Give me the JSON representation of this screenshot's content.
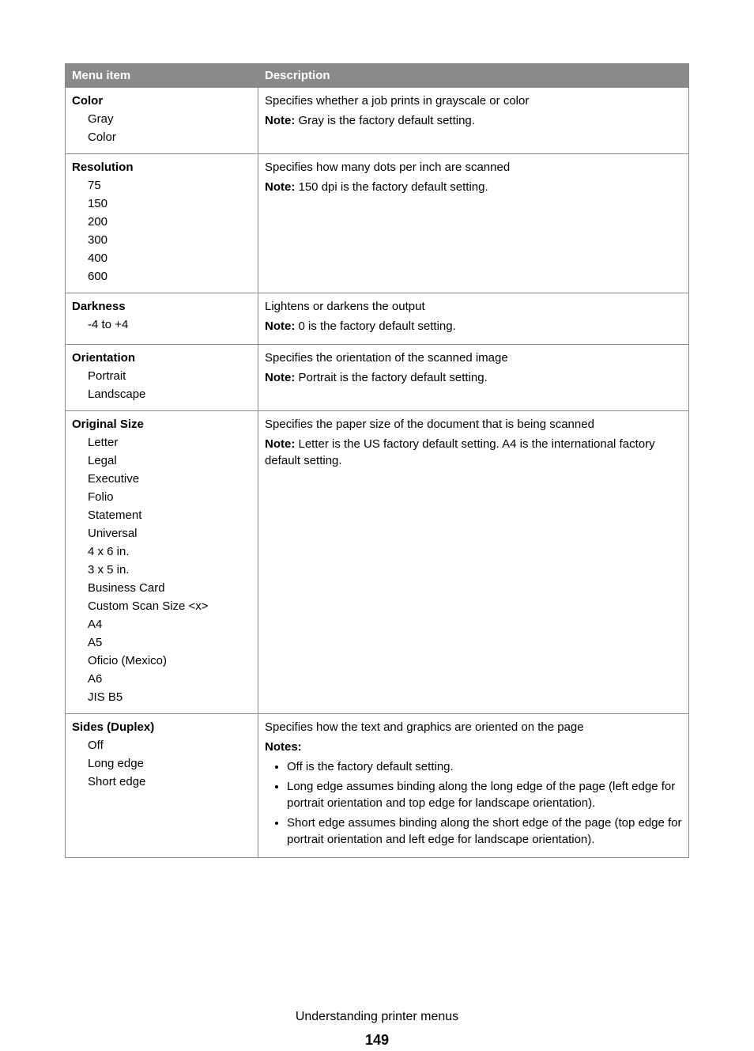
{
  "header": {
    "menu_item": "Menu item",
    "description": "Description"
  },
  "rows": {
    "color": {
      "title": "Color",
      "options": [
        "Gray",
        "Color"
      ],
      "desc1": "Specifies whether a job prints in grayscale or color",
      "note_label": "Note:",
      "note_text": " Gray is the factory default setting."
    },
    "resolution": {
      "title": "Resolution",
      "options": [
        "75",
        "150",
        "200",
        "300",
        "400",
        "600"
      ],
      "desc1": "Specifies how many dots per inch are scanned",
      "note_label": "Note:",
      "note_text": " 150 dpi is the factory default setting."
    },
    "darkness": {
      "title": "Darkness",
      "options": [
        "-4 to +4"
      ],
      "desc1": "Lightens or darkens the output",
      "note_label": "Note:",
      "note_text": " 0 is the factory default setting."
    },
    "orientation": {
      "title": "Orientation",
      "options": [
        "Portrait",
        "Landscape"
      ],
      "desc1": "Specifies the orientation of the scanned image",
      "note_label": "Note:",
      "note_text": " Portrait is the factory default setting."
    },
    "original_size": {
      "title": "Original Size",
      "options": [
        "Letter",
        "Legal",
        "Executive",
        "Folio",
        "Statement",
        "Universal",
        "4 x 6 in.",
        "3 x 5 in.",
        "Business Card",
        "Custom Scan Size <x>",
        "A4",
        "A5",
        "Oficio (Mexico)",
        "A6",
        "JIS B5"
      ],
      "desc1": "Specifies the paper size of the document that is being scanned",
      "note_label": "Note:",
      "note_text": " Letter is the US factory default setting. A4 is the international factory default setting."
    },
    "sides": {
      "title": "Sides (Duplex)",
      "options": [
        "Off",
        "Long edge",
        "Short edge"
      ],
      "desc1": "Specifies how the text and graphics are oriented on the page",
      "notes_label": "Notes:",
      "bullets": [
        "Off is the factory default setting.",
        "Long edge assumes binding along the long edge of the page (left edge for portrait orientation and top edge for landscape orientation).",
        "Short edge assumes binding along the short edge of the page (top edge for portrait orientation and left edge for landscape orientation)."
      ]
    }
  },
  "footer": {
    "title": "Understanding printer menus",
    "page": "149"
  }
}
